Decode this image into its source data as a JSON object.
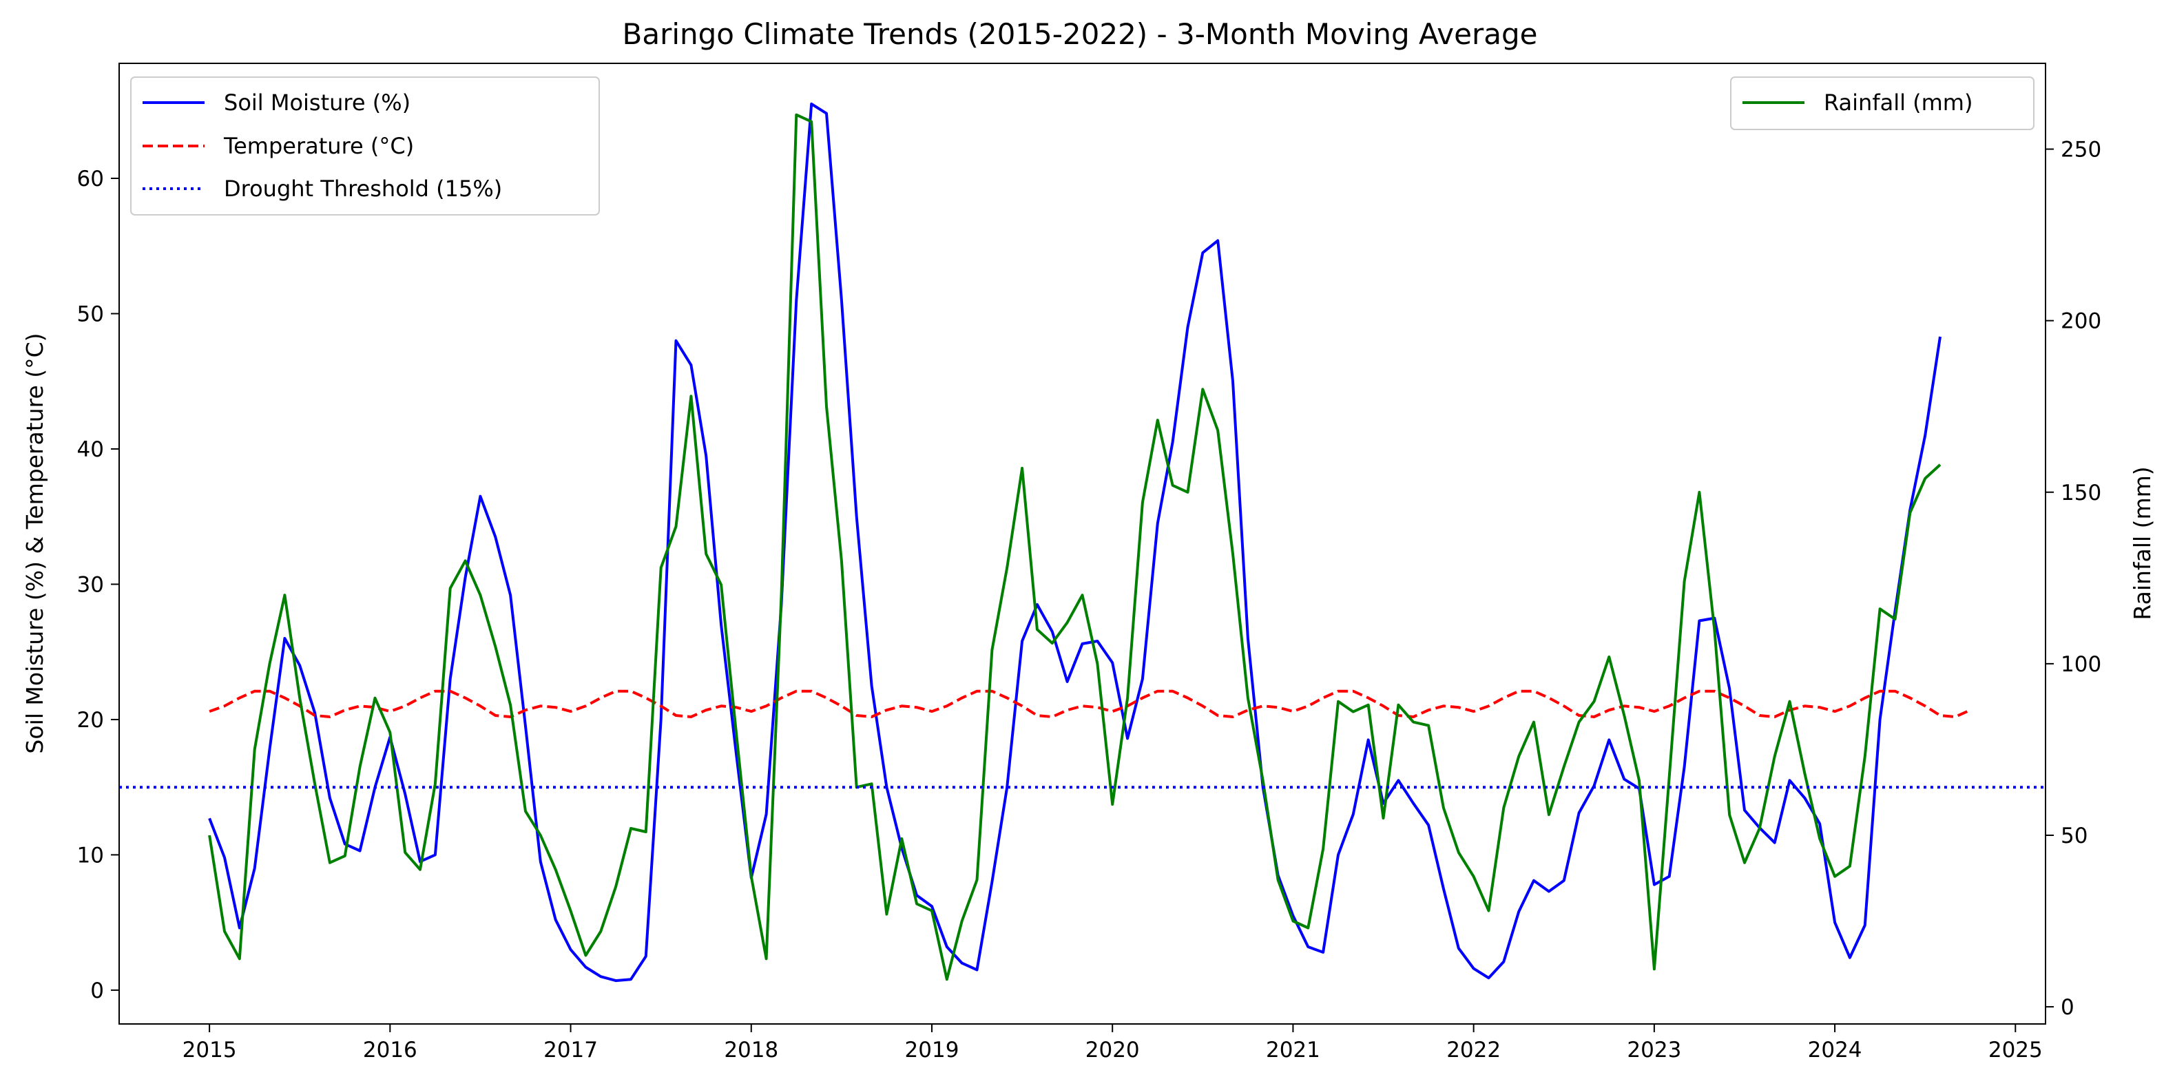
{
  "chart_data": {
    "type": "line",
    "title": "Baringo Climate Trends (2015-2022) - 3-Month Moving Average",
    "ylabel": "Soil Moisture (%) & Temperature (°C)",
    "y2label": "Rainfall (mm)",
    "x_start": "2015-01",
    "x_step": "1 month",
    "xlim": [
      "2014-07",
      "2025-03"
    ],
    "ylim": [
      -2.5,
      68.5
    ],
    "y2lim": [
      -5,
      275
    ],
    "xticks": [
      "2015",
      "2016",
      "2017",
      "2018",
      "2019",
      "2020",
      "2021",
      "2022",
      "2023",
      "2024",
      "2025"
    ],
    "yticks": [
      0,
      10,
      20,
      30,
      40,
      50,
      60
    ],
    "y2ticks": [
      0,
      50,
      100,
      150,
      200,
      250
    ],
    "legend_left_position": "upper-left",
    "legend_right_position": "upper-right",
    "grid": false,
    "series": [
      {
        "name": "Soil Moisture (%)",
        "axis": "left",
        "color": "#0000ff",
        "style": "solid",
        "values": [
          12.7,
          9.8,
          4.6,
          9.0,
          17.8,
          26.0,
          24.0,
          20.5,
          14.2,
          10.8,
          10.3,
          15.0,
          18.7,
          14.5,
          9.5,
          10.0,
          23.0,
          30.5,
          36.5,
          33.5,
          29.2,
          19.5,
          9.5,
          5.2,
          3.0,
          1.7,
          1.0,
          0.7,
          0.8,
          2.5,
          20.0,
          48.0,
          46.2,
          39.5,
          27.0,
          17.5,
          8.3,
          13.0,
          28.5,
          51.0,
          65.5,
          64.8,
          51.0,
          35.0,
          22.5,
          15.0,
          10.5,
          7.0,
          6.2,
          3.2,
          2.0,
          1.5,
          8.0,
          15.0,
          25.8,
          28.5,
          26.5,
          22.8,
          25.6,
          25.8,
          24.2,
          18.6,
          23.0,
          34.5,
          40.5,
          49.0,
          54.5,
          55.4,
          45.0,
          26.0,
          15.0,
          8.5,
          5.5,
          3.2,
          2.8,
          10.0,
          13.0,
          18.5,
          13.8,
          15.5,
          13.8,
          12.2,
          7.5,
          3.1,
          1.6,
          0.9,
          2.1,
          5.8,
          8.1,
          7.3,
          8.1,
          13.1,
          15.1,
          18.5,
          15.6,
          14.9,
          7.8,
          8.4,
          16.5,
          27.3,
          27.5,
          22.3,
          13.3,
          12.0,
          10.9,
          15.5,
          14.2,
          12.3,
          5.0,
          2.4,
          4.8,
          20.0,
          28.0,
          35.5,
          41.0,
          48.3
        ]
      },
      {
        "name": "Temperature (°C)",
        "axis": "left",
        "color": "#ff0000",
        "style": "dashed",
        "values": [
          20.6,
          21.0,
          21.6,
          22.1,
          22.1,
          21.6,
          21.0,
          20.3,
          20.2,
          20.7,
          21.0,
          20.9,
          20.6,
          21.0,
          21.6,
          22.1,
          22.1,
          21.6,
          21.0,
          20.3,
          20.2,
          20.7,
          21.0,
          20.9,
          20.6,
          21.0,
          21.6,
          22.1,
          22.1,
          21.6,
          21.0,
          20.3,
          20.2,
          20.7,
          21.0,
          20.9,
          20.6,
          21.0,
          21.6,
          22.1,
          22.1,
          21.6,
          21.0,
          20.3,
          20.2,
          20.7,
          21.0,
          20.9,
          20.6,
          21.0,
          21.6,
          22.1,
          22.1,
          21.6,
          21.0,
          20.3,
          20.2,
          20.7,
          21.0,
          20.9,
          20.6,
          21.0,
          21.6,
          22.1,
          22.1,
          21.6,
          21.0,
          20.3,
          20.2,
          20.7,
          21.0,
          20.9,
          20.6,
          21.0,
          21.6,
          22.1,
          22.1,
          21.6,
          21.0,
          20.3,
          20.2,
          20.7,
          21.0,
          20.9,
          20.6,
          21.0,
          21.6,
          22.1,
          22.1,
          21.6,
          21.0,
          20.3,
          20.2,
          20.7,
          21.0,
          20.9,
          20.6,
          21.0,
          21.6,
          22.1,
          22.1,
          21.6,
          21.0,
          20.3,
          20.2,
          20.7,
          21.0,
          20.9,
          20.6,
          21.0,
          21.6,
          22.1,
          22.1,
          21.6,
          21.0,
          20.3,
          20.2,
          20.7
        ]
      },
      {
        "name": "Rainfall (mm)",
        "axis": "right",
        "color": "#008000",
        "style": "solid",
        "values": [
          50,
          22,
          14,
          75,
          100,
          120,
          90,
          65,
          42,
          44,
          70,
          90,
          80,
          45,
          40,
          65,
          122,
          130,
          120,
          105,
          88,
          57,
          50,
          40,
          28,
          15,
          22,
          35,
          52,
          51,
          128,
          140,
          178,
          132,
          123,
          80,
          38,
          14,
          120,
          260,
          258,
          175,
          130,
          64,
          65,
          27,
          49,
          30,
          28,
          8,
          25,
          37,
          104,
          128,
          157,
          110,
          106,
          112,
          120,
          100,
          59,
          90,
          147,
          171,
          152,
          150,
          180,
          168,
          132,
          90,
          66,
          37,
          25,
          23,
          46,
          89,
          86,
          88,
          55,
          88,
          83,
          82,
          58,
          45,
          38,
          28,
          58,
          73,
          83,
          56,
          70,
          83,
          89,
          102,
          85,
          66,
          11,
          67,
          124,
          150,
          110,
          56,
          42,
          52,
          73,
          89,
          68,
          49,
          38,
          41,
          73,
          116,
          113,
          144,
          154,
          158
        ]
      },
      {
        "name": "Drought Threshold (15%)",
        "axis": "left",
        "color": "#0000ff",
        "style": "dotted",
        "values": [
          15
        ]
      }
    ]
  }
}
